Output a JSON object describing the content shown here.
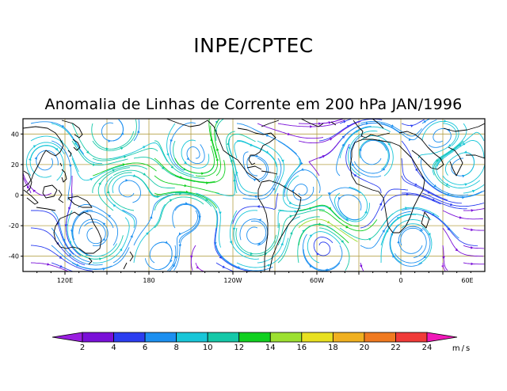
{
  "header": {
    "org_title": "INPE/CPTEC",
    "map_title": "Anomalia de Linhas de Corrente em 200 hPa JAN/1996"
  },
  "map": {
    "lon_range": [
      90,
      420
    ],
    "lat_range": [
      -50,
      50
    ],
    "lat_ticks": [
      {
        "value": 40,
        "label": "40"
      },
      {
        "value": 20,
        "label": "20"
      },
      {
        "value": 0,
        "label": "0"
      },
      {
        "value": -20,
        "label": "-20"
      },
      {
        "value": -40,
        "label": "-40"
      }
    ],
    "lon_ticks": [
      {
        "value": 120,
        "label": "120E"
      },
      {
        "value": 180,
        "label": "180"
      },
      {
        "value": 240,
        "label": "120W"
      },
      {
        "value": 300,
        "label": "60W"
      },
      {
        "value": 360,
        "label": "0"
      },
      {
        "value": 420,
        "label": "60E"
      }
    ],
    "grid_color": "#b4a046",
    "coastline_color": "#000000"
  },
  "colorbar": {
    "unit": "m/s",
    "labels": [
      "2",
      "4",
      "6",
      "8",
      "10",
      "12",
      "14",
      "16",
      "18",
      "20",
      "22",
      "24"
    ],
    "colors": [
      "#9a1ee0",
      "#7a10d8",
      "#2b3ef0",
      "#1c8ff0",
      "#18c6d8",
      "#14c8a8",
      "#10d020",
      "#9ce030",
      "#e8e020",
      "#f0b020",
      "#f07a20",
      "#f03a38",
      "#f018b8"
    ]
  }
}
